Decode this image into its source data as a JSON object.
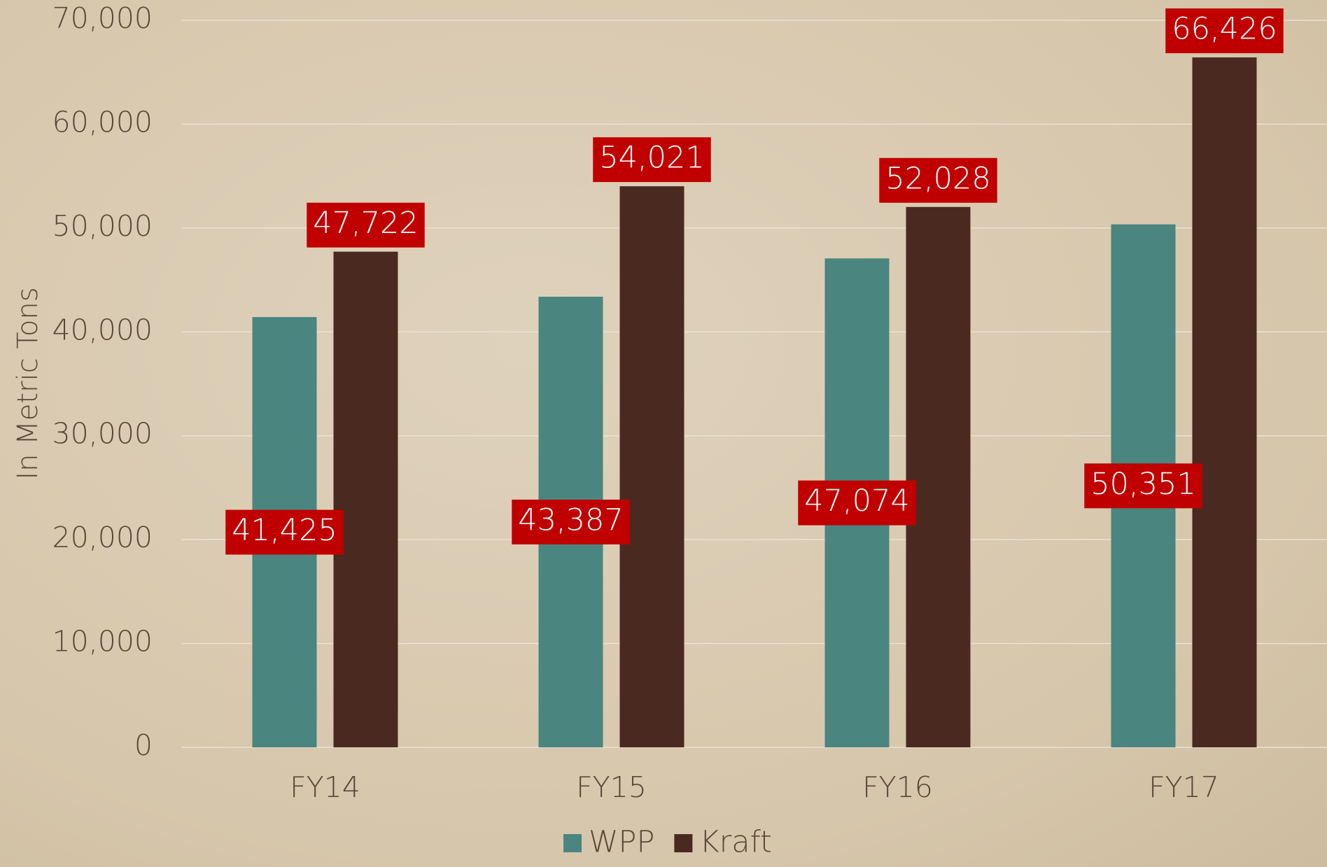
{
  "chart_data": {
    "type": "bar",
    "y_label": "In Metric Tons",
    "categories": [
      "FY14",
      "FY15",
      "FY16",
      "FY17"
    ],
    "series": [
      {
        "name": "WPP",
        "color": "#4a8580",
        "values": [
          41425,
          43387,
          47074,
          50351
        ],
        "value_labels": [
          "41,425",
          "43,387",
          "47,074",
          "50,351"
        ]
      },
      {
        "name": "Kraft",
        "color": "#4a2a20",
        "values": [
          47722,
          54021,
          52028,
          66426
        ],
        "value_labels": [
          "47,722",
          "54,021",
          "52,028",
          "66,426"
        ]
      }
    ],
    "ylim": [
      0,
      70000
    ],
    "yticks": [
      0,
      {
        "value": 10000,
        "label": "10,000"
      },
      {
        "value": 20000,
        "label": "20,000"
      },
      {
        "value": 30000,
        "label": "30,000"
      },
      {
        "value": 40000,
        "label": "40,000"
      },
      {
        "value": 50000,
        "label": "50,000"
      },
      {
        "value": 60000,
        "label": "60,000"
      },
      {
        "value": 70000,
        "label": "70,000"
      }
    ],
    "grid": true,
    "legend": "bottom",
    "label_color": "#c00000"
  }
}
